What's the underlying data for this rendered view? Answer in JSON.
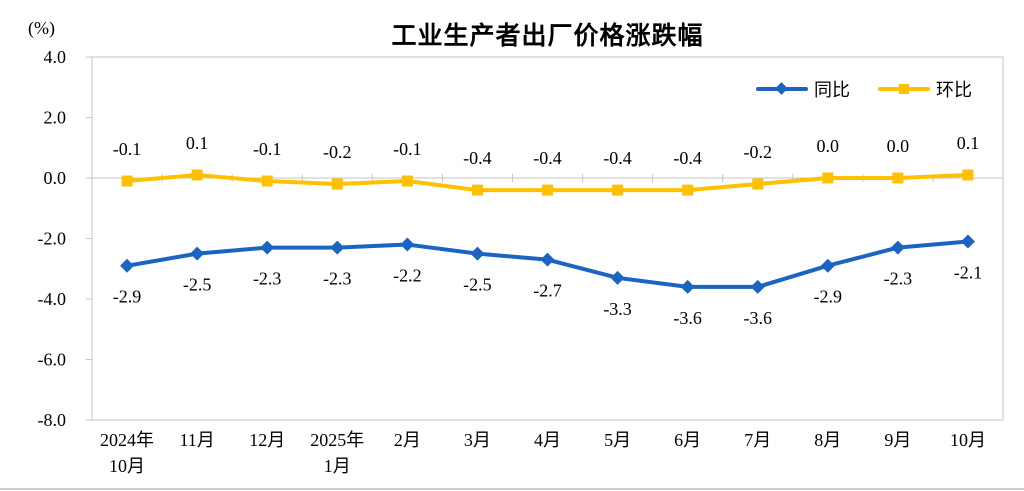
{
  "chart_data": {
    "type": "line",
    "title": "工业生产者出厂价格涨跌幅",
    "unit_label": "(%)",
    "ylim": [
      -8.0,
      4.0
    ],
    "y_ticks": [
      "4.0",
      "2.0",
      "0.0",
      "-2.0",
      "-4.0",
      "-6.0",
      "-8.0"
    ],
    "grid": false,
    "legend_position": "top-right-inside",
    "axis_color": "#c6c6c6",
    "text_color": "#000000",
    "categories": [
      {
        "line1": "2024年",
        "line2": "10月"
      },
      {
        "line1": "11月"
      },
      {
        "line1": "12月"
      },
      {
        "line1": "2025年",
        "line2": "1月"
      },
      {
        "line1": "2月"
      },
      {
        "line1": "3月"
      },
      {
        "line1": "4月"
      },
      {
        "line1": "5月"
      },
      {
        "line1": "6月"
      },
      {
        "line1": "7月"
      },
      {
        "line1": "8月"
      },
      {
        "line1": "9月"
      },
      {
        "line1": "10月"
      }
    ],
    "series": [
      {
        "key": "yoy",
        "name": "同比",
        "color": "#1b64c4",
        "marker": "diamond",
        "label_position": "below",
        "values": [
          -2.9,
          -2.5,
          -2.3,
          -2.3,
          -2.2,
          -2.5,
          -2.7,
          -3.3,
          -3.6,
          -3.6,
          -2.9,
          -2.3,
          -2.1
        ]
      },
      {
        "key": "mom",
        "name": "环比",
        "color": "#ffc000",
        "marker": "square",
        "label_position": "above",
        "values": [
          -0.1,
          0.1,
          -0.1,
          -0.2,
          -0.1,
          -0.4,
          -0.4,
          -0.4,
          -0.4,
          -0.2,
          0.0,
          0.0,
          0.1
        ]
      }
    ]
  }
}
